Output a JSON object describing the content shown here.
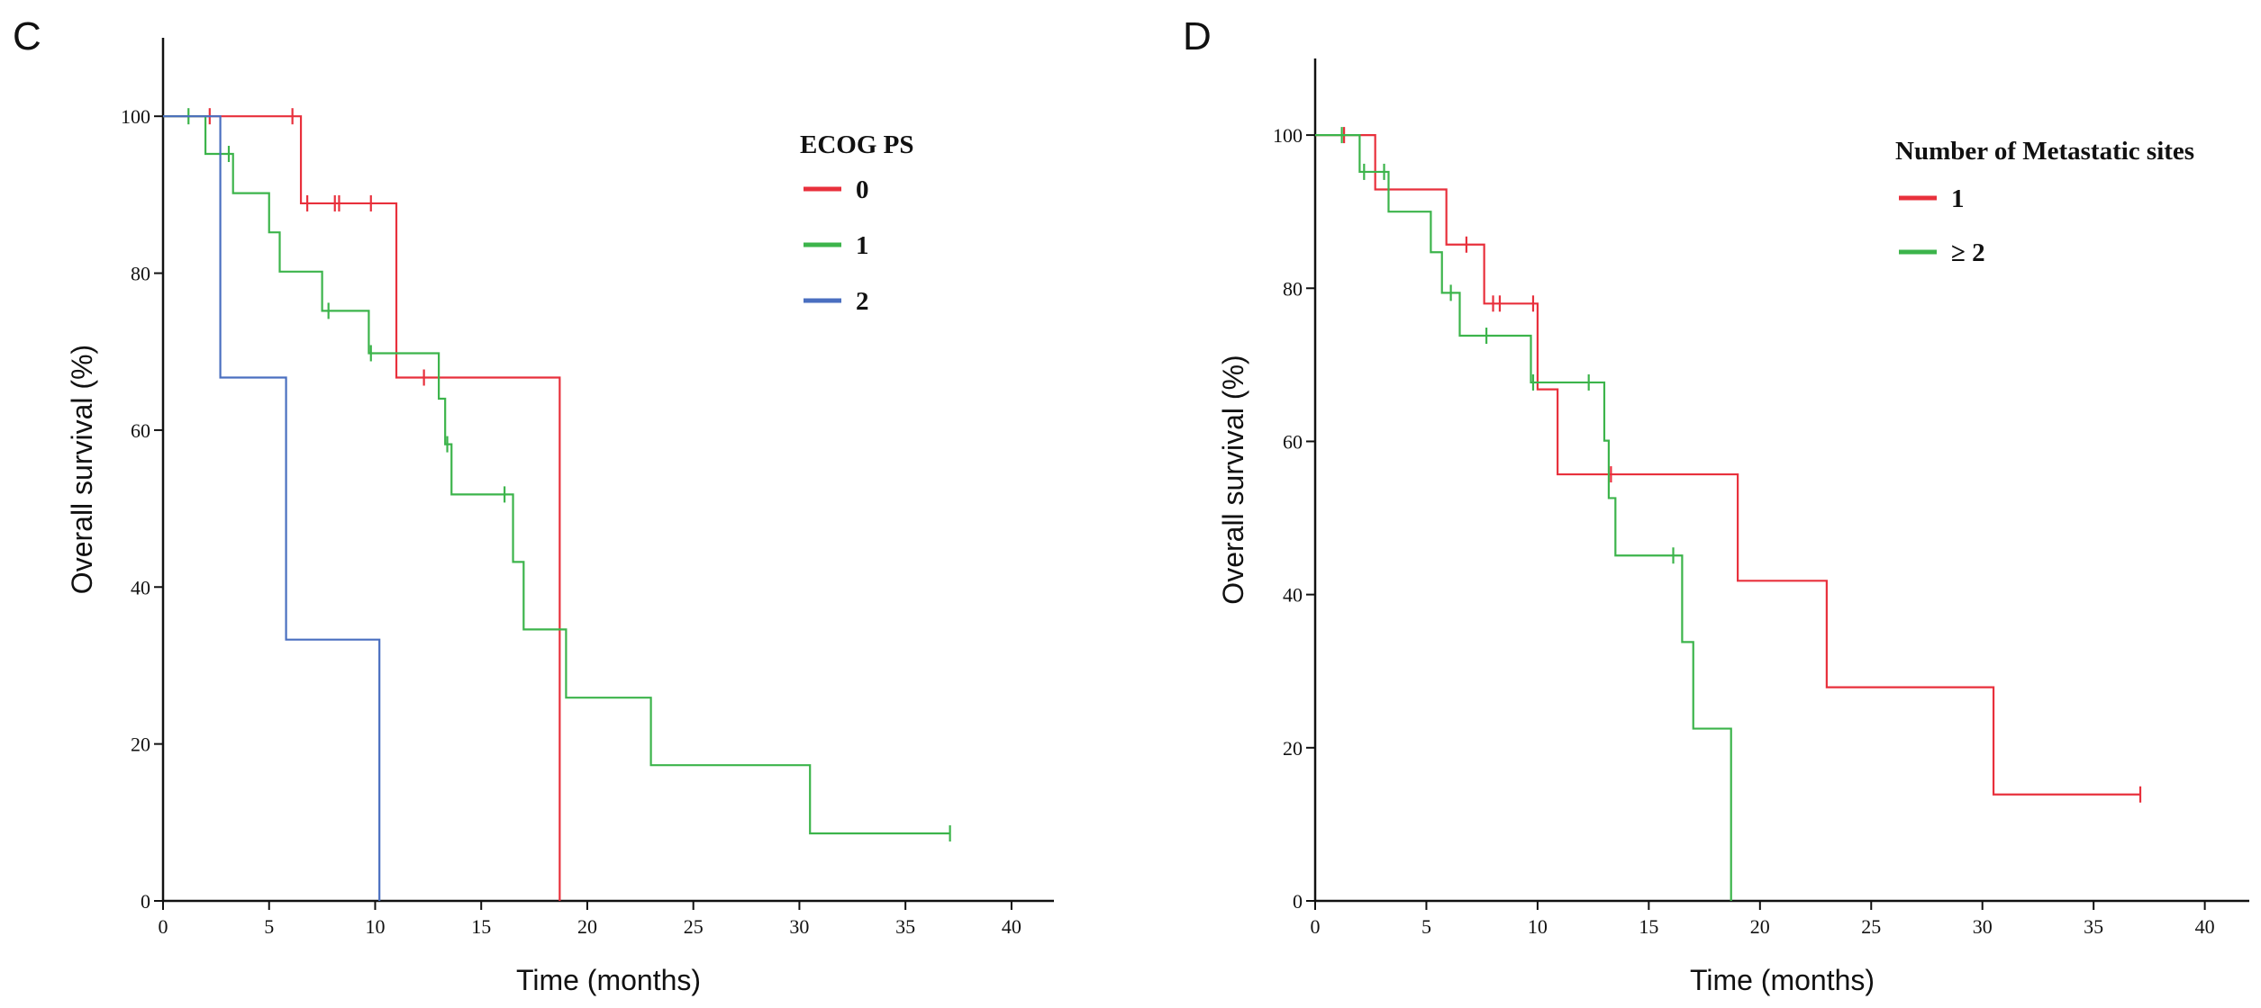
{
  "chart_data": [
    {
      "type": "line",
      "step": true,
      "panel_label": "C",
      "xlabel": "Time (months)",
      "ylabel": "Overall survival (%)",
      "xlim": [
        0,
        42
      ],
      "ylim": [
        0,
        110
      ],
      "xticks": [
        0,
        5,
        10,
        15,
        20,
        25,
        30,
        35,
        40
      ],
      "yticks": [
        0,
        20,
        40,
        60,
        80,
        100
      ],
      "grid": false,
      "legend": {
        "title": "ECOG PS",
        "placement": "top-right",
        "entries": [
          "0",
          "1",
          "2"
        ]
      },
      "series": [
        {
          "name": "0",
          "color": "#e8303c",
          "x": [
            0,
            6.5,
            11,
            18.7
          ],
          "y": [
            100,
            88.9,
            66.7,
            0
          ],
          "x_end": 18.7,
          "censored": [
            [
              2.2,
              100
            ],
            [
              6.1,
              100
            ],
            [
              6.8,
              88.9
            ],
            [
              8.1,
              88.9
            ],
            [
              8.3,
              88.9
            ],
            [
              9.8,
              88.9
            ],
            [
              12.3,
              66.7
            ]
          ]
        },
        {
          "name": "1",
          "color": "#3cb44b",
          "x": [
            0,
            2.0,
            3.3,
            5.0,
            5.5,
            7.5,
            9.7,
            13.0,
            13.3,
            13.6,
            16.5,
            17.0,
            19.0,
            23.0,
            30.5
          ],
          "y": [
            100,
            95.2,
            90.2,
            85.2,
            80.2,
            75.2,
            69.8,
            64.0,
            58.2,
            51.8,
            43.2,
            34.6,
            25.9,
            17.3,
            8.6
          ],
          "x_end": 37.1,
          "censored": [
            [
              1.2,
              100
            ],
            [
              3.1,
              95.2
            ],
            [
              7.8,
              75.2
            ],
            [
              9.8,
              69.8
            ],
            [
              13.4,
              58.2
            ],
            [
              16.1,
              51.8
            ],
            [
              37.1,
              8.6
            ]
          ]
        },
        {
          "name": "2",
          "color": "#4a6fc0",
          "x": [
            0,
            2.7,
            5.8,
            10.2
          ],
          "y": [
            100,
            66.7,
            33.3,
            0
          ],
          "x_end": 10.2,
          "censored": []
        }
      ]
    },
    {
      "type": "line",
      "step": true,
      "panel_label": "D",
      "xlabel": "Time (months)",
      "ylabel": "Overall survival (%)",
      "xlim": [
        0,
        42
      ],
      "ylim": [
        0,
        110
      ],
      "xticks": [
        0,
        5,
        10,
        15,
        20,
        25,
        30,
        35,
        40
      ],
      "yticks": [
        0,
        20,
        40,
        60,
        80,
        100
      ],
      "grid": false,
      "legend": {
        "title": "Number of Metastatic sites",
        "placement": "top-right",
        "entries": [
          "1",
          "≥ 2"
        ]
      },
      "series": [
        {
          "name": "1",
          "color": "#e8303c",
          "x": [
            0,
            2.7,
            5.9,
            7.6,
            10.0,
            10.9,
            19.0,
            23.0,
            30.5
          ],
          "y": [
            100,
            92.9,
            85.7,
            78.0,
            66.8,
            55.7,
            41.8,
            27.9,
            13.9
          ],
          "x_end": 37.1,
          "censored": [
            [
              1.3,
              100
            ],
            [
              6.8,
              85.7
            ],
            [
              8.0,
              78.0
            ],
            [
              8.3,
              78.0
            ],
            [
              9.8,
              78.0
            ],
            [
              13.3,
              55.7
            ],
            [
              37.1,
              13.9
            ]
          ]
        },
        {
          "name": "≥ 2",
          "color": "#3cb44b",
          "x": [
            0,
            2.0,
            3.3,
            5.2,
            5.7,
            6.5,
            9.7,
            13.0,
            13.2,
            13.5,
            16.5,
            17.0,
            18.7
          ],
          "y": [
            100,
            95.2,
            90.0,
            84.7,
            79.4,
            73.8,
            67.7,
            60.1,
            52.6,
            45.1,
            33.8,
            22.5,
            0
          ],
          "x_end": 18.7,
          "censored": [
            [
              1.2,
              100
            ],
            [
              2.2,
              95.2
            ],
            [
              3.1,
              95.2
            ],
            [
              6.1,
              79.4
            ],
            [
              7.7,
              73.8
            ],
            [
              9.8,
              67.7
            ],
            [
              12.3,
              67.7
            ],
            [
              16.1,
              45.1
            ]
          ]
        }
      ]
    }
  ]
}
